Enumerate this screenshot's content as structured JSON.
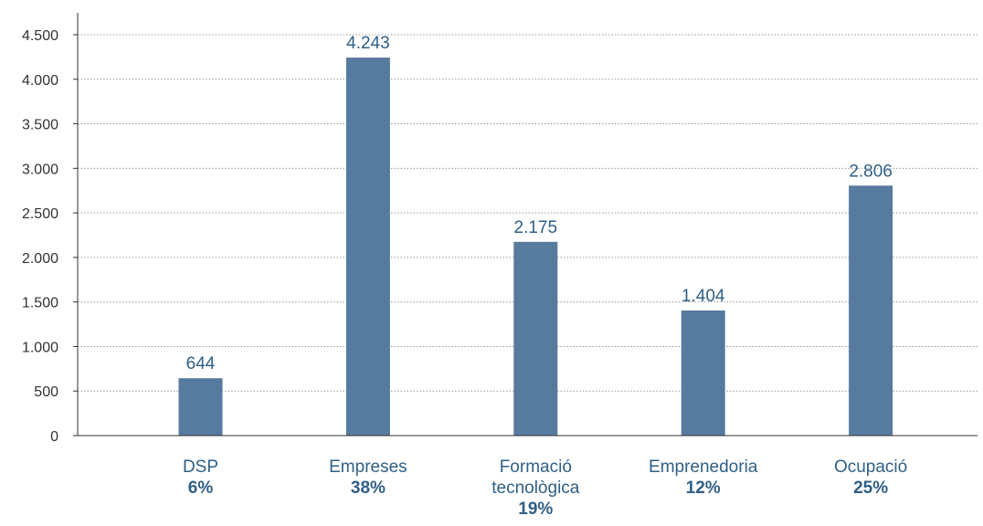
{
  "chart_data": {
    "type": "bar",
    "categories": [
      {
        "lines": [
          "DSP"
        ],
        "share": "6%"
      },
      {
        "lines": [
          "Empreses"
        ],
        "share": "38%"
      },
      {
        "lines": [
          "Formació",
          "tecnològica"
        ],
        "share": "19%"
      },
      {
        "lines": [
          "Emprenedoria"
        ],
        "share": "12%"
      },
      {
        "lines": [
          "Ocupació"
        ],
        "share": "25%"
      }
    ],
    "values": [
      644,
      4243,
      2175,
      1404,
      2806
    ],
    "value_labels": [
      "644",
      "4.243",
      "2.175",
      "1.404",
      "2.806"
    ],
    "ylim": [
      0,
      4500
    ],
    "yticks": [
      0,
      500,
      1000,
      1500,
      2000,
      2500,
      3000,
      3500,
      4000,
      4500
    ],
    "ytick_labels": [
      "0",
      "500",
      "1.000",
      "1.500",
      "2.000",
      "2.500",
      "3.000",
      "3.500",
      "4.000",
      "4.500"
    ],
    "grid": true,
    "colors": {
      "bar": "#577b9e",
      "text": "#2f5f86",
      "axis": "#333333",
      "grid": "#999999"
    }
  }
}
